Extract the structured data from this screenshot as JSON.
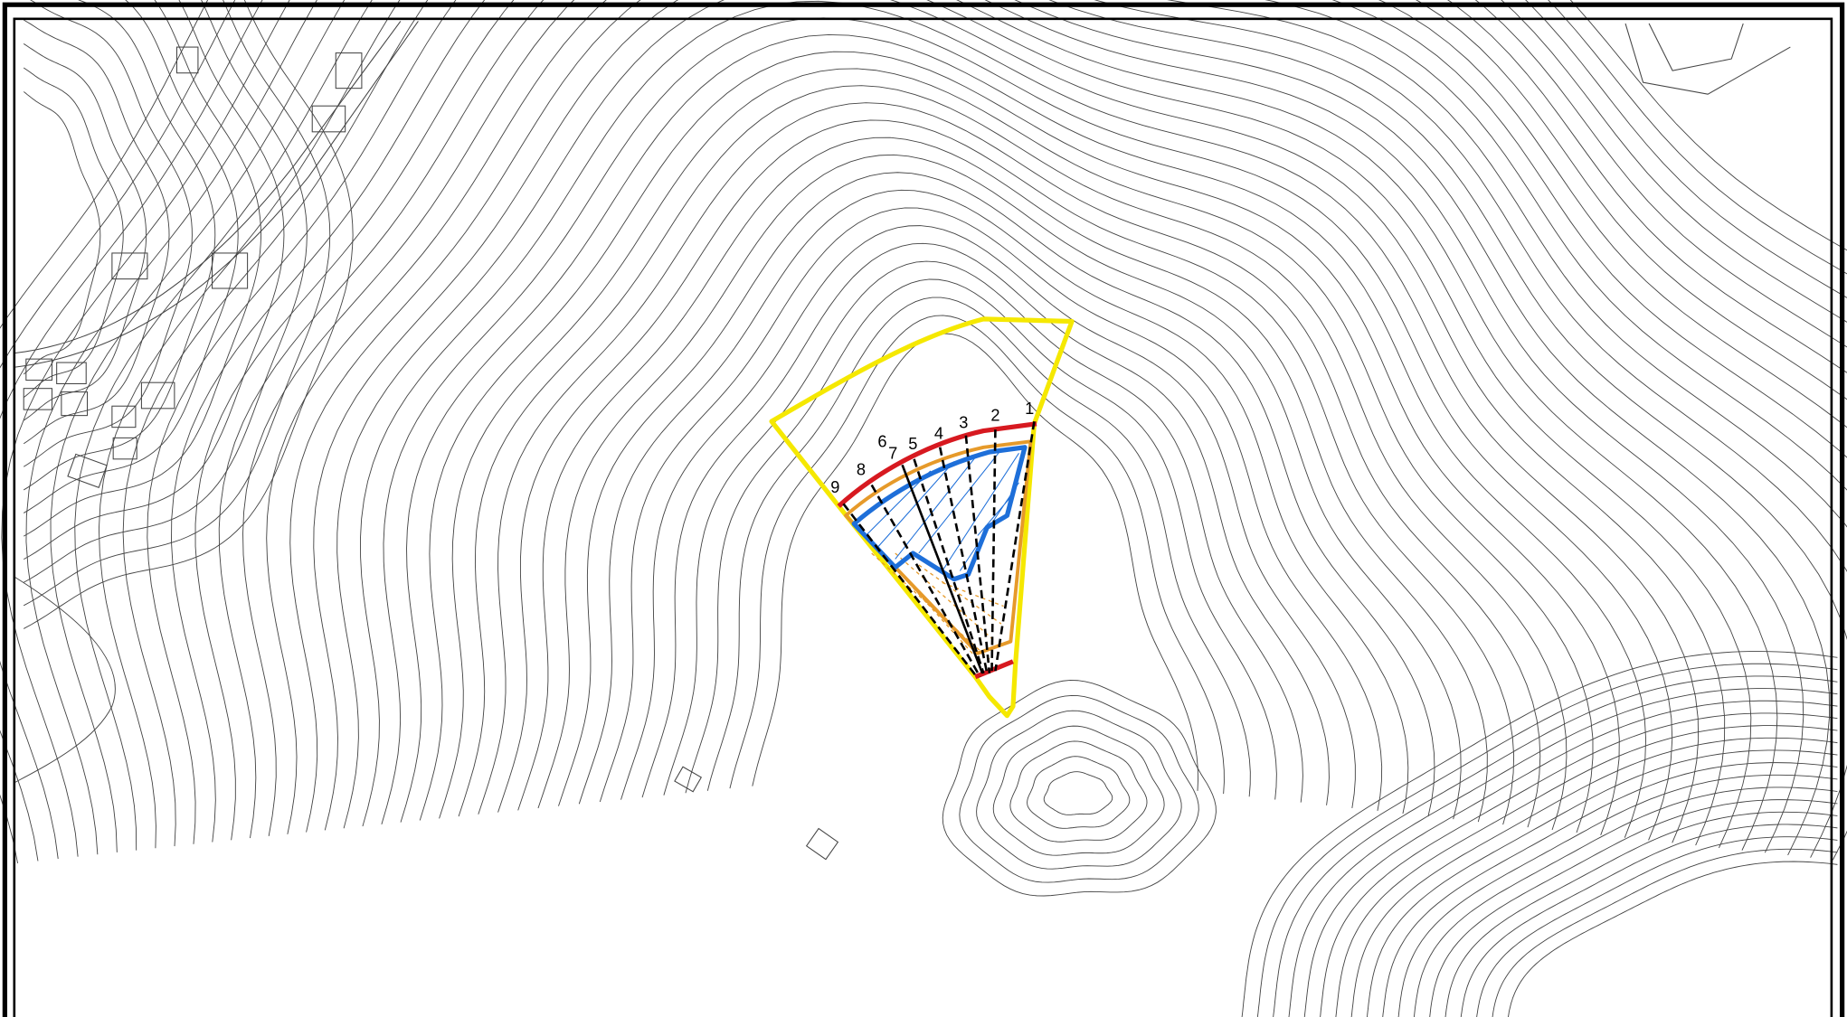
{
  "section_labels": [
    "1",
    "2",
    "3",
    "4",
    "5",
    "6",
    "7",
    "8",
    "9"
  ]
}
